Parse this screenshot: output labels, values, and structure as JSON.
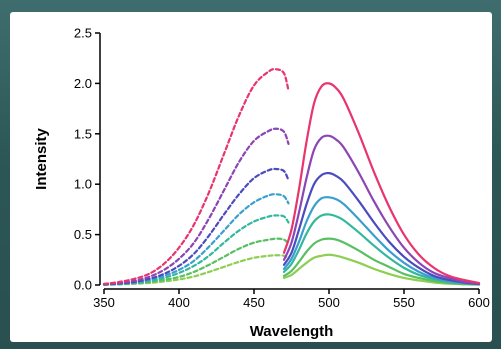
{
  "chart_data": {
    "type": "line",
    "title": "",
    "xlabel": "Wavelength",
    "ylabel": "Intensity",
    "xlim": [
      350,
      600
    ],
    "ylim": [
      0,
      2.5
    ],
    "xticks": [
      350,
      400,
      450,
      500,
      550,
      600
    ],
    "yticks": [
      0.0,
      0.5,
      1.0,
      1.5,
      2.0,
      2.5
    ],
    "ytick_labels": [
      "0.0",
      "0.5",
      "1.0",
      "1.5",
      "2.0",
      "2.5"
    ],
    "grid": false,
    "excitation_series": [
      {
        "color": "#e8356e",
        "style": "dashed",
        "x": [
          350,
          360,
          370,
          380,
          390,
          400,
          410,
          420,
          430,
          440,
          450,
          460,
          465,
          470,
          473
        ],
        "y": [
          0.01,
          0.03,
          0.06,
          0.11,
          0.21,
          0.37,
          0.6,
          0.92,
          1.3,
          1.68,
          1.98,
          2.12,
          2.14,
          2.1,
          1.93
        ]
      },
      {
        "color": "#8c45b5",
        "style": "dashed",
        "x": [
          350,
          360,
          370,
          380,
          390,
          400,
          410,
          420,
          430,
          440,
          450,
          460,
          465,
          470,
          473
        ],
        "y": [
          0.01,
          0.02,
          0.04,
          0.08,
          0.15,
          0.26,
          0.42,
          0.66,
          0.94,
          1.22,
          1.43,
          1.53,
          1.55,
          1.52,
          1.4
        ]
      },
      {
        "color": "#4b4bc0",
        "style": "dashed",
        "x": [
          350,
          360,
          370,
          380,
          390,
          400,
          410,
          420,
          430,
          440,
          450,
          460,
          465,
          470,
          473
        ],
        "y": [
          0.005,
          0.015,
          0.03,
          0.06,
          0.11,
          0.19,
          0.31,
          0.49,
          0.7,
          0.9,
          1.06,
          1.14,
          1.15,
          1.13,
          1.04
        ]
      },
      {
        "color": "#3a9fd0",
        "style": "dashed",
        "x": [
          350,
          360,
          370,
          380,
          390,
          400,
          410,
          420,
          430,
          440,
          450,
          460,
          465,
          470,
          473
        ],
        "y": [
          0.005,
          0.01,
          0.025,
          0.05,
          0.09,
          0.15,
          0.24,
          0.38,
          0.54,
          0.7,
          0.82,
          0.89,
          0.9,
          0.88,
          0.81
        ]
      },
      {
        "color": "#34b89c",
        "style": "dashed",
        "x": [
          350,
          360,
          370,
          380,
          390,
          400,
          410,
          420,
          430,
          440,
          450,
          460,
          465,
          470,
          473
        ],
        "y": [
          0.004,
          0.01,
          0.02,
          0.04,
          0.07,
          0.12,
          0.19,
          0.29,
          0.42,
          0.54,
          0.63,
          0.68,
          0.69,
          0.68,
          0.62
        ]
      },
      {
        "color": "#58c060",
        "style": "dashed",
        "x": [
          350,
          360,
          370,
          380,
          390,
          400,
          410,
          420,
          430,
          440,
          450,
          460,
          465,
          470,
          473
        ],
        "y": [
          0.003,
          0.008,
          0.016,
          0.03,
          0.05,
          0.08,
          0.13,
          0.2,
          0.28,
          0.36,
          0.42,
          0.45,
          0.46,
          0.45,
          0.41
        ]
      },
      {
        "color": "#8ccf52",
        "style": "dashed",
        "x": [
          350,
          360,
          370,
          380,
          390,
          400,
          410,
          420,
          430,
          440,
          450,
          460,
          465,
          470,
          473
        ],
        "y": [
          0.002,
          0.006,
          0.012,
          0.02,
          0.035,
          0.055,
          0.085,
          0.13,
          0.18,
          0.23,
          0.27,
          0.29,
          0.295,
          0.29,
          0.26
        ]
      }
    ],
    "emission_series": [
      {
        "color": "#e8356e",
        "style": "solid",
        "x": [
          470,
          475,
          480,
          485,
          490,
          495,
          500,
          505,
          510,
          520,
          530,
          540,
          550,
          560,
          570,
          580,
          590,
          600
        ],
        "y": [
          0.32,
          0.55,
          0.95,
          1.42,
          1.8,
          1.97,
          2.0,
          1.95,
          1.84,
          1.5,
          1.12,
          0.78,
          0.5,
          0.3,
          0.17,
          0.09,
          0.05,
          0.02
        ]
      },
      {
        "color": "#8c45b5",
        "style": "solid",
        "x": [
          470,
          475,
          480,
          485,
          490,
          495,
          500,
          505,
          510,
          520,
          530,
          540,
          550,
          560,
          570,
          580,
          590,
          600
        ],
        "y": [
          0.25,
          0.42,
          0.72,
          1.06,
          1.34,
          1.46,
          1.48,
          1.44,
          1.36,
          1.11,
          0.83,
          0.58,
          0.37,
          0.22,
          0.12,
          0.07,
          0.03,
          0.015
        ]
      },
      {
        "color": "#4b4bc0",
        "style": "solid",
        "x": [
          470,
          475,
          480,
          485,
          490,
          495,
          500,
          505,
          510,
          520,
          530,
          540,
          550,
          560,
          570,
          580,
          590,
          600
        ],
        "y": [
          0.2,
          0.32,
          0.55,
          0.8,
          1.0,
          1.09,
          1.11,
          1.08,
          1.02,
          0.83,
          0.62,
          0.43,
          0.28,
          0.17,
          0.09,
          0.05,
          0.025,
          0.01
        ]
      },
      {
        "color": "#3a9fd0",
        "style": "solid",
        "x": [
          470,
          475,
          480,
          485,
          490,
          495,
          500,
          505,
          510,
          520,
          530,
          540,
          550,
          560,
          570,
          580,
          590,
          600
        ],
        "y": [
          0.16,
          0.26,
          0.43,
          0.63,
          0.78,
          0.86,
          0.87,
          0.85,
          0.8,
          0.65,
          0.49,
          0.34,
          0.22,
          0.13,
          0.07,
          0.04,
          0.02,
          0.01
        ]
      },
      {
        "color": "#34b89c",
        "style": "solid",
        "x": [
          470,
          475,
          480,
          485,
          490,
          495,
          500,
          505,
          510,
          520,
          530,
          540,
          550,
          560,
          570,
          580,
          590,
          600
        ],
        "y": [
          0.13,
          0.21,
          0.35,
          0.51,
          0.63,
          0.69,
          0.7,
          0.68,
          0.64,
          0.52,
          0.39,
          0.27,
          0.17,
          0.1,
          0.06,
          0.03,
          0.015,
          0.008
        ]
      },
      {
        "color": "#58c060",
        "style": "solid",
        "x": [
          470,
          475,
          480,
          485,
          490,
          495,
          500,
          505,
          510,
          520,
          530,
          540,
          550,
          560,
          570,
          580,
          590,
          600
        ],
        "y": [
          0.09,
          0.14,
          0.23,
          0.33,
          0.41,
          0.45,
          0.46,
          0.45,
          0.42,
          0.34,
          0.25,
          0.18,
          0.11,
          0.07,
          0.04,
          0.02,
          0.01,
          0.005
        ]
      },
      {
        "color": "#8ccf52",
        "style": "solid",
        "x": [
          470,
          475,
          480,
          485,
          490,
          495,
          500,
          505,
          510,
          520,
          530,
          540,
          550,
          560,
          570,
          580,
          590,
          600
        ],
        "y": [
          0.07,
          0.1,
          0.16,
          0.22,
          0.27,
          0.29,
          0.3,
          0.29,
          0.27,
          0.22,
          0.16,
          0.11,
          0.07,
          0.045,
          0.025,
          0.013,
          0.007,
          0.003
        ]
      }
    ]
  }
}
